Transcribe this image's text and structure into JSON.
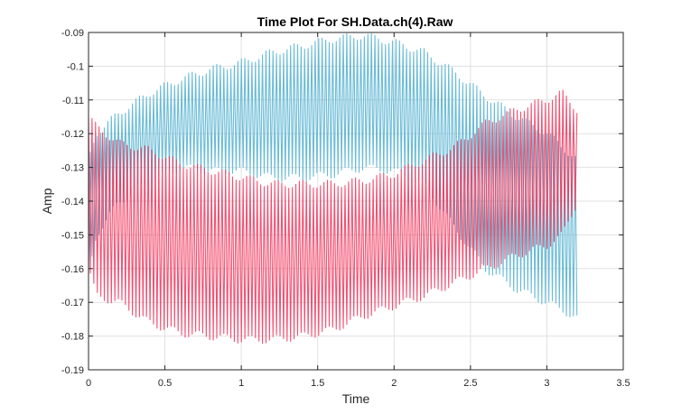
{
  "colors": {
    "series_red": "#f0325a",
    "series_blue": "#5ab4d2",
    "grid": "#e1e1e1",
    "axis": "#262626"
  },
  "chart_data": {
    "type": "line",
    "title": "Time Plot For SH.Data.ch(4).Raw",
    "xlabel": "Time",
    "ylabel": "Amp",
    "xlim": [
      0,
      3.5
    ],
    "ylim": [
      -0.19,
      -0.09
    ],
    "xticks": [
      "0",
      "0.5",
      "1",
      "1.5",
      "2",
      "2.5",
      "3",
      "3.5"
    ],
    "yticks": [
      "-0.09",
      "-0.1",
      "-0.11",
      "-0.12",
      "-0.13",
      "-0.14",
      "-0.15",
      "-0.16",
      "-0.17",
      "-0.18",
      "-0.19"
    ],
    "grid": true,
    "series": [
      {
        "color": "#f0325a",
        "description": "oscillating signal, period ~0.023 s; envelope upper/lower (data units)",
        "x": [
          0,
          3.2
        ],
        "oscillation_period": 0.023,
        "envelope": {
          "t": [
            0.0,
            0.05,
            0.2,
            0.4,
            0.6,
            0.8,
            1.0,
            1.2,
            1.4,
            1.6,
            1.8,
            2.0,
            2.2,
            2.4,
            2.6,
            2.8,
            3.0,
            3.1,
            3.2
          ],
          "upper": [
            -0.115,
            -0.118,
            -0.123,
            -0.125,
            -0.129,
            -0.131,
            -0.133,
            -0.135,
            -0.135,
            -0.135,
            -0.134,
            -0.132,
            -0.128,
            -0.124,
            -0.117,
            -0.113,
            -0.11,
            -0.108,
            -0.113
          ],
          "lower": [
            -0.16,
            -0.168,
            -0.17,
            -0.176,
            -0.179,
            -0.18,
            -0.181,
            -0.181,
            -0.18,
            -0.178,
            -0.174,
            -0.171,
            -0.168,
            -0.164,
            -0.16,
            -0.156,
            -0.153,
            -0.15,
            -0.14
          ]
        }
      },
      {
        "color": "#5ab4d2",
        "description": "oscillating signal, period ~0.023 s; envelope upper/lower (data units)",
        "x": [
          0,
          3.2
        ],
        "oscillation_period": 0.023,
        "envelope": {
          "t": [
            0.0,
            0.05,
            0.2,
            0.4,
            0.6,
            0.8,
            1.0,
            1.2,
            1.4,
            1.6,
            1.8,
            2.0,
            2.2,
            2.4,
            2.6,
            2.8,
            3.0,
            3.1,
            3.2
          ],
          "upper": [
            -0.128,
            -0.12,
            -0.114,
            -0.108,
            -0.104,
            -0.101,
            -0.099,
            -0.096,
            -0.094,
            -0.092,
            -0.091,
            -0.093,
            -0.096,
            -0.102,
            -0.109,
            -0.115,
            -0.12,
            -0.124,
            -0.128
          ],
          "lower": [
            -0.162,
            -0.15,
            -0.14,
            -0.134,
            -0.13,
            -0.131,
            -0.131,
            -0.133,
            -0.133,
            -0.132,
            -0.13,
            -0.131,
            -0.135,
            -0.148,
            -0.16,
            -0.166,
            -0.17,
            -0.172,
            -0.175
          ]
        }
      }
    ]
  }
}
